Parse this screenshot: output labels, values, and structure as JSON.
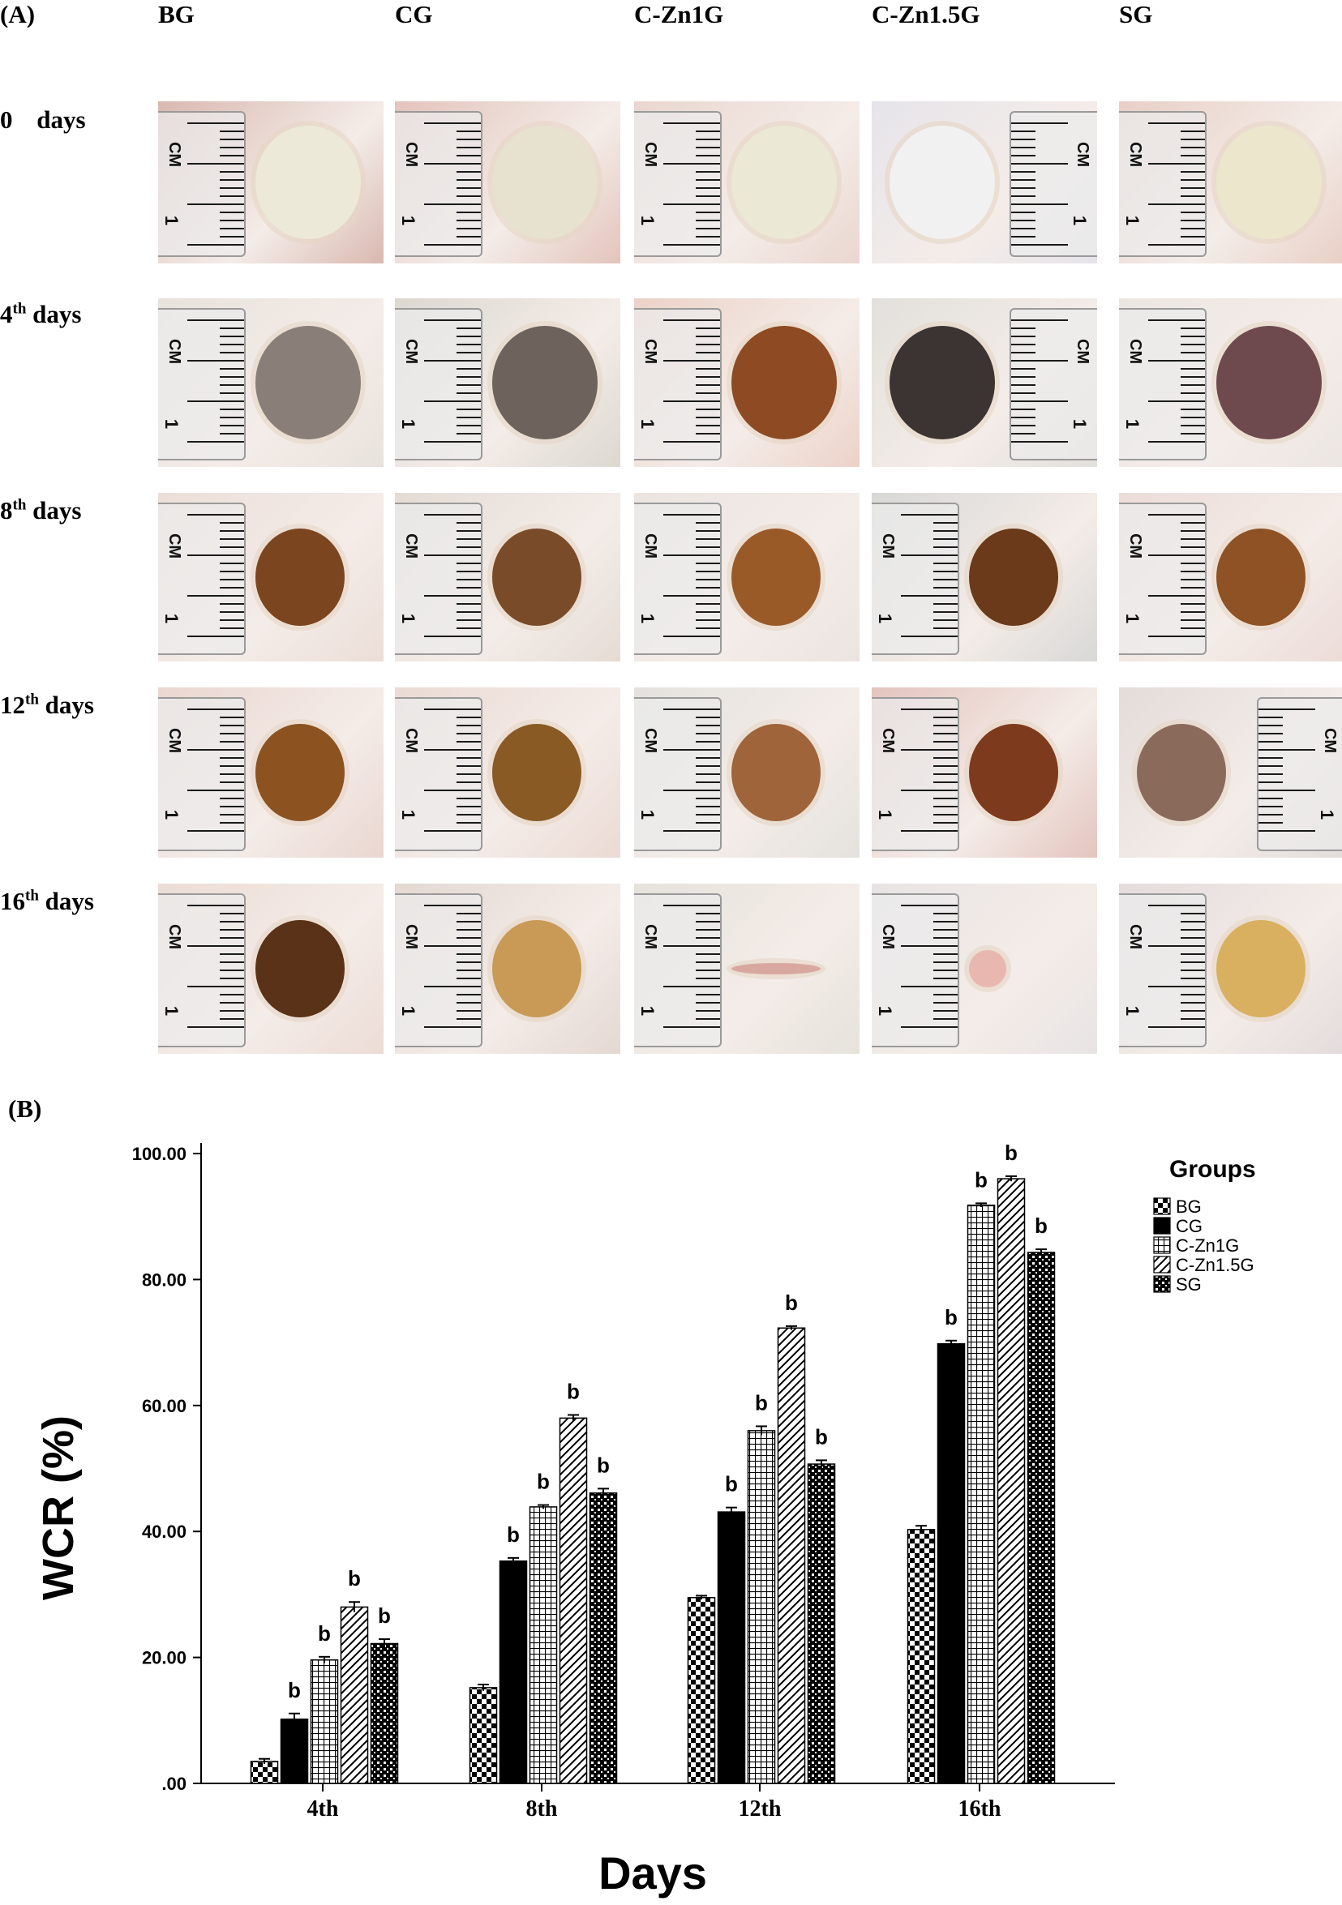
{
  "panel_a": {
    "label": "(A)",
    "columns": [
      "BG",
      "CG",
      "C-Zn1G",
      "C-Zn1.5G",
      "SG"
    ],
    "rows": [
      {
        "num": "0",
        "sup": "",
        "word": "days"
      },
      {
        "num": "4",
        "sup": "th",
        "word": "days"
      },
      {
        "num": "8",
        "sup": "th",
        "word": "days"
      },
      {
        "num": "12",
        "sup": "th",
        "word": "days"
      },
      {
        "num": "16",
        "sup": "th",
        "word": "days"
      }
    ],
    "ruler_unit": "CM",
    "ruler_mark": "1"
  },
  "panel_b": {
    "label": "(B)"
  },
  "colors": {
    "bar_fill": "#000000",
    "background": "#ffffff",
    "error_bar": "#000000"
  },
  "chart_data": {
    "type": "bar",
    "ylabel": "WCR (%)",
    "xlabel": "Days",
    "ylim": [
      0,
      100
    ],
    "yticks": [
      ".00",
      "20.00",
      "40.00",
      "60.00",
      "80.00",
      "100.00"
    ],
    "categories": [
      "4th",
      "8th",
      "12th",
      "16th"
    ],
    "legend_title": "Groups",
    "legend_position": "top-right",
    "series": [
      {
        "name": "BG",
        "pattern": "checker",
        "values": [
          3.5,
          15.2,
          29.5,
          40.3
        ],
        "errors": [
          0.4,
          0.5,
          0.3,
          0.6
        ],
        "labels": [
          "",
          "",
          "",
          ""
        ]
      },
      {
        "name": "CG",
        "pattern": "solid",
        "values": [
          10.2,
          35.3,
          43.1,
          69.8
        ],
        "errors": [
          0.9,
          0.5,
          0.7,
          0.5
        ],
        "labels": [
          "b",
          "b",
          "b",
          "b"
        ]
      },
      {
        "name": "C-Zn1G",
        "pattern": "grid",
        "values": [
          19.6,
          43.9,
          56.0,
          91.8
        ],
        "errors": [
          0.5,
          0.3,
          0.7,
          0.3
        ],
        "labels": [
          "b",
          "b",
          "b",
          "b"
        ]
      },
      {
        "name": "C-Zn1.5G",
        "pattern": "hatch",
        "values": [
          28.0,
          58.0,
          72.3,
          96.0
        ],
        "errors": [
          0.8,
          0.5,
          0.3,
          0.4
        ],
        "labels": [
          "b",
          "b",
          "b",
          "b"
        ]
      },
      {
        "name": "SG",
        "pattern": "dense-checker",
        "values": [
          22.2,
          46.1,
          50.7,
          84.3
        ],
        "errors": [
          0.7,
          0.7,
          0.6,
          0.5
        ],
        "labels": [
          "b",
          "b",
          "b",
          "b"
        ]
      }
    ]
  }
}
